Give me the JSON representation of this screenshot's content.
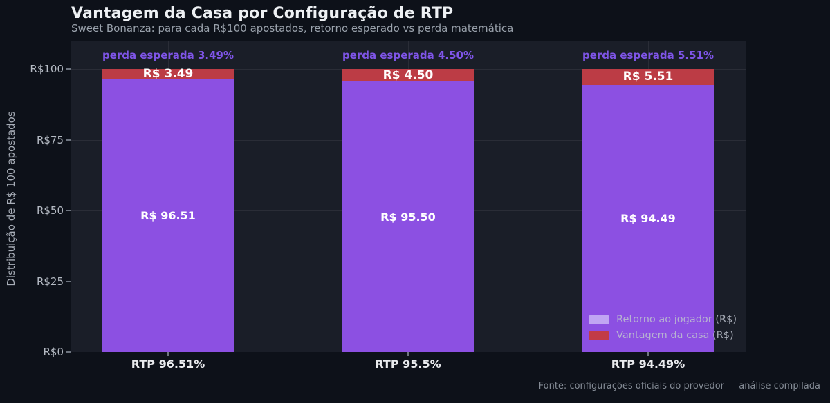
{
  "title": "Vantagem da Casa por Configuração de RTP",
  "subtitle": "Sweet Bonanza: para cada R$100 apostados, retorno esperado vs perda matemática",
  "footer": "Fonte: configurações oficiais do provedor — análise compilada",
  "colors": {
    "background": "#0d1119",
    "plot_background": "#1a1e28",
    "player_return_bar": "#8c50e2",
    "house_edge_bar": "#bc3c45",
    "annotation_text": "#7f55e8",
    "legend_return_swatch": "#c0a5f3",
    "legend_edge_swatch": "#c23b46"
  },
  "chart_data": {
    "type": "bar",
    "stacked": true,
    "categories": [
      "RTP 96.51%",
      "RTP 95.5%",
      "RTP 94.49%"
    ],
    "series": [
      {
        "name": "Retorno ao jogador (R$)",
        "values": [
          96.51,
          95.5,
          94.49
        ],
        "labels": [
          "R$ 96.51",
          "R$ 95.50",
          "R$ 94.49"
        ],
        "color": "#8c50e2"
      },
      {
        "name": "Vantagem da casa (R$)",
        "values": [
          3.49,
          4.5,
          5.51
        ],
        "labels": [
          "R$ 3.49",
          "R$ 4.50",
          "R$ 5.51"
        ],
        "color": "#bc3c45"
      }
    ],
    "annotations": [
      "perda esperada 3.49%",
      "perda esperada 4.50%",
      "perda esperada 5.51%"
    ],
    "ylabel": "Distribuição de R$ 100 apostados",
    "ytick_labels": [
      "R$0",
      "R$25",
      "R$50",
      "R$75",
      "R$100"
    ],
    "ytick_values": [
      0,
      25,
      50,
      75,
      100
    ],
    "ylim": [
      0,
      110
    ],
    "grid": true,
    "legend": [
      "Retorno ao jogador (R$)",
      "Vantagem da casa (R$)"
    ],
    "legend_position": "lower right"
  }
}
